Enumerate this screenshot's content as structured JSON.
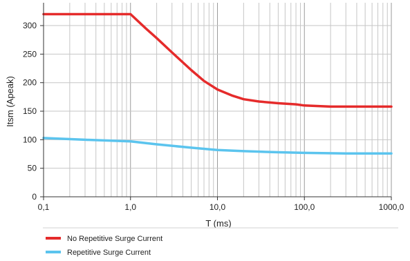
{
  "chart_data": {
    "type": "line",
    "xlabel": "T (ms)",
    "ylabel": "Itsm (Apeak)",
    "x_scale": "log",
    "xlim": [
      0.1,
      1000
    ],
    "ylim": [
      0,
      340
    ],
    "grid": true,
    "legend_position": "bottom",
    "x_ticks": [
      {
        "value": 0.1,
        "label": "0,1"
      },
      {
        "value": 1,
        "label": "1,0"
      },
      {
        "value": 10,
        "label": "10,0"
      },
      {
        "value": 100,
        "label": "100,0"
      },
      {
        "value": 1000,
        "label": "1000,0"
      }
    ],
    "y_ticks": [
      {
        "value": 0,
        "label": "0"
      },
      {
        "value": 50,
        "label": "50"
      },
      {
        "value": 100,
        "label": "100"
      },
      {
        "value": 150,
        "label": "150"
      },
      {
        "value": 200,
        "label": "200"
      },
      {
        "value": 250,
        "label": "250"
      },
      {
        "value": 300,
        "label": "300"
      }
    ],
    "series": [
      {
        "name": "No Repetitive Surge Current",
        "color": "#e52b2b",
        "points": [
          [
            0.1,
            320
          ],
          [
            0.3,
            320
          ],
          [
            1.0,
            320
          ],
          [
            1.5,
            295
          ],
          [
            2,
            278
          ],
          [
            3,
            253
          ],
          [
            5,
            222
          ],
          [
            7,
            203
          ],
          [
            10,
            188
          ],
          [
            15,
            177
          ],
          [
            20,
            171
          ],
          [
            30,
            167
          ],
          [
            50,
            164
          ],
          [
            80,
            162
          ],
          [
            100,
            160
          ],
          [
            200,
            158
          ],
          [
            300,
            158
          ],
          [
            1000,
            158
          ]
        ]
      },
      {
        "name": "Repetitive Surge Current",
        "color": "#5bc4ee",
        "points": [
          [
            0.1,
            103
          ],
          [
            0.3,
            100
          ],
          [
            1.0,
            97
          ],
          [
            2,
            92
          ],
          [
            5,
            86
          ],
          [
            10,
            82
          ],
          [
            20,
            80
          ],
          [
            50,
            78
          ],
          [
            100,
            77
          ],
          [
            300,
            76
          ],
          [
            1000,
            76
          ]
        ]
      }
    ]
  }
}
